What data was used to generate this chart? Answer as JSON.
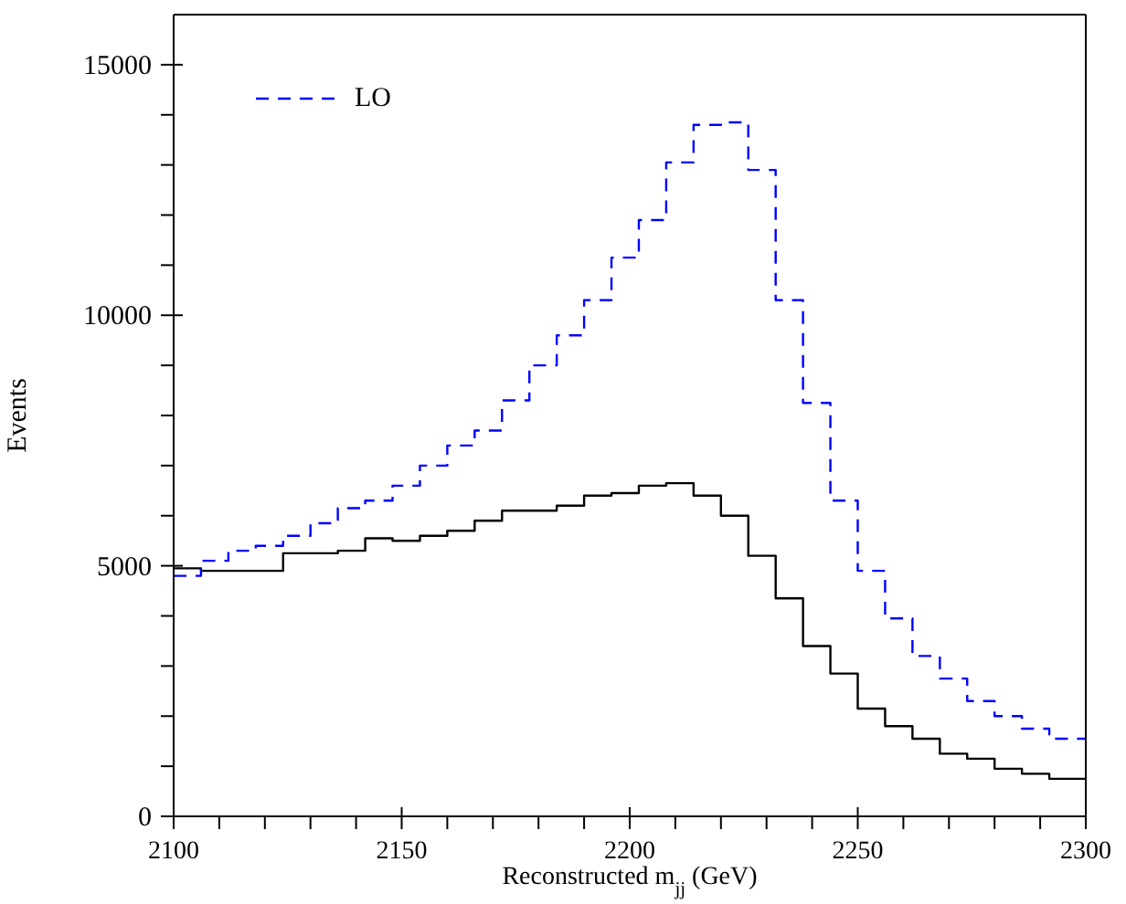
{
  "chart_data": {
    "type": "histogram",
    "xlabel": "Reconstructed m$_{jj}$ (GeV)",
    "ylabel": "Events",
    "bins": [
      2100,
      2106,
      2112,
      2118,
      2124,
      2130,
      2136,
      2142,
      2148,
      2154,
      2160,
      2166,
      2172,
      2178,
      2184,
      2190,
      2196,
      2202,
      2208,
      2214,
      2220,
      2226,
      2232,
      2238,
      2244,
      2250,
      2256,
      2262,
      2268,
      2274,
      2280,
      2286,
      2292,
      2300
    ],
    "series": [
      {
        "color": "#000000",
        "line_style": "solid",
        "values": [
          4950,
          4900,
          4900,
          4900,
          5250,
          5250,
          5300,
          5550,
          5500,
          5600,
          5700,
          5900,
          6100,
          6100,
          6200,
          6400,
          6450,
          6600,
          6650,
          6400,
          6000,
          5200,
          4350,
          3400,
          2850,
          2150,
          1800,
          1550,
          1250,
          1150,
          950,
          850,
          750
        ]
      },
      {
        "name": "LO",
        "color": "#0000ff",
        "line_style": "dashed",
        "values": [
          4800,
          5100,
          5300,
          5400,
          5600,
          5850,
          6150,
          6300,
          6600,
          7000,
          7400,
          7700,
          8300,
          9000,
          9600,
          10300,
          11150,
          11900,
          13050,
          13800,
          13850,
          12900,
          10300,
          8250,
          6300,
          4900,
          3950,
          3200,
          2750,
          2300,
          2000,
          1750,
          1550
        ]
      }
    ],
    "xlim": [
      2100,
      2300
    ],
    "xticks": [
      2100,
      {
        "value": 2110,
        "label": null
      },
      {
        "value": 2120,
        "label": null
      },
      {
        "value": 2130,
        "label": null
      },
      {
        "value": 2140,
        "label": null
      },
      2150,
      {
        "value": 2160,
        "label": null
      },
      {
        "value": 2170,
        "label": null
      },
      {
        "value": 2180,
        "label": null
      },
      {
        "value": 2190,
        "label": null
      },
      2200,
      {
        "value": 2210,
        "label": null
      },
      {
        "value": 2220,
        "label": null
      },
      {
        "value": 2230,
        "label": null
      },
      {
        "value": 2240,
        "label": null
      },
      2250,
      {
        "value": 2260,
        "label": null
      },
      {
        "value": 2270,
        "label": null
      },
      {
        "value": 2280,
        "label": null
      },
      {
        "value": 2290,
        "label": null
      },
      2300
    ],
    "ylim": [
      0,
      16000
    ],
    "yticks": [
      0,
      {
        "value": 1000,
        "label": null
      },
      {
        "value": 2000,
        "label": null
      },
      {
        "value": 3000,
        "label": null
      },
      {
        "value": 4000,
        "label": null
      },
      5000,
      {
        "value": 6000,
        "label": null
      },
      {
        "value": 7000,
        "label": null
      },
      {
        "value": 8000,
        "label": null
      },
      {
        "value": 9000,
        "label": null
      },
      10000,
      {
        "value": 11000,
        "label": null
      },
      {
        "value": 12000,
        "label": null
      },
      {
        "value": 13000,
        "label": null
      },
      {
        "value": 14000,
        "label": null
      },
      15000
    ],
    "legend": "top left",
    "grid": false
  }
}
